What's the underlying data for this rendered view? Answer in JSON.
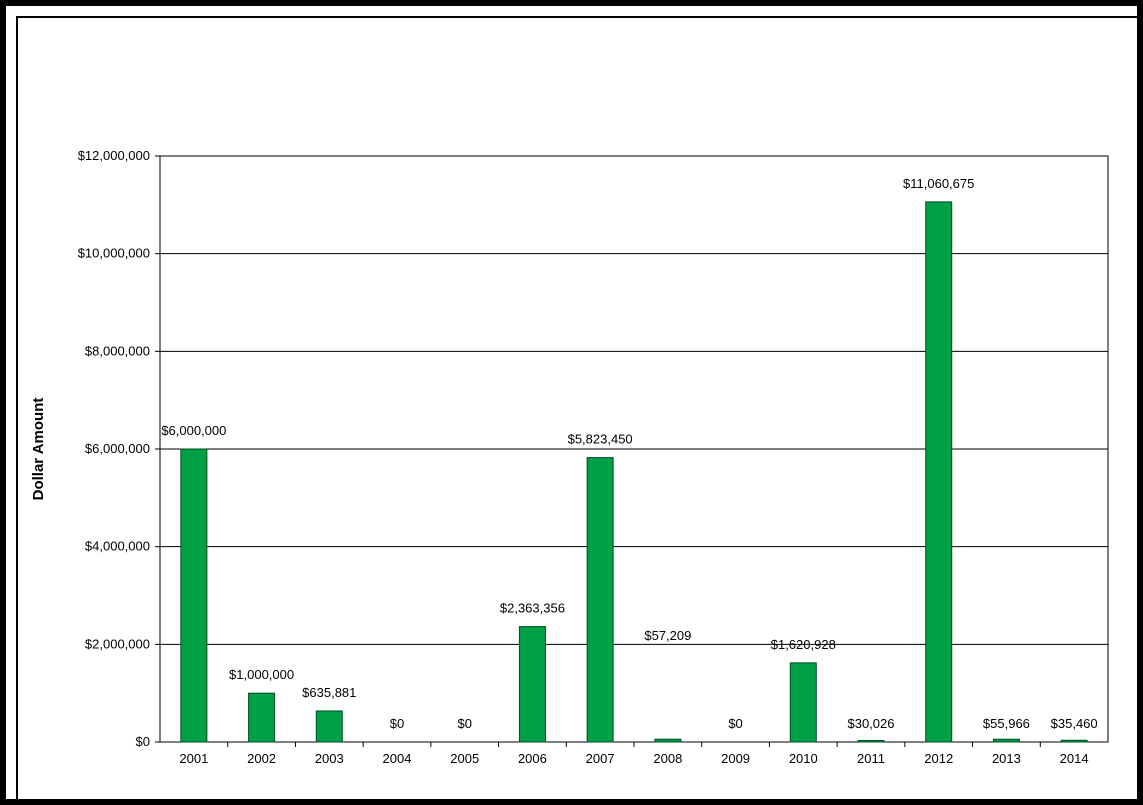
{
  "chart_data": {
    "type": "bar",
    "title": "",
    "xlabel": "",
    "ylabel": "Dollar Amount",
    "ylim": [
      0,
      12000000
    ],
    "yticks": [
      0,
      2000000,
      4000000,
      6000000,
      8000000,
      10000000,
      12000000
    ],
    "ytick_labels": [
      "$0",
      "$2,000,000",
      "$4,000,000",
      "$6,000,000",
      "$8,000,000",
      "$10,000,000",
      "$12,000,000"
    ],
    "categories": [
      "2001",
      "2002",
      "2003",
      "2004",
      "2005",
      "2006",
      "2007",
      "2008",
      "2009",
      "2010",
      "2011",
      "2012",
      "2013",
      "2014"
    ],
    "values": [
      6000000,
      1000000,
      635881,
      0,
      0,
      2363356,
      5823450,
      57209,
      0,
      1620928,
      30026,
      11060675,
      55966,
      35460
    ],
    "data_labels": [
      "$6,000,000",
      "$1,000,000",
      "$635,881",
      "$0",
      "$0",
      "$2,363,356",
      "$5,823,450",
      "$57,209",
      "$0",
      "$1,620,928",
      "$30,026",
      "$11,060,675",
      "$55,966",
      "$35,460"
    ],
    "bar_color": "#00a046",
    "grid": true,
    "legend": "none"
  }
}
